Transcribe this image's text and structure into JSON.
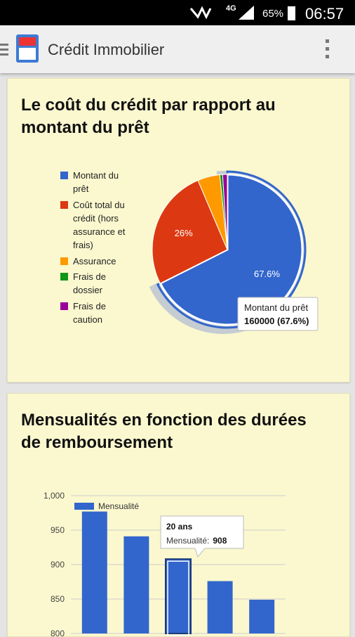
{
  "status_bar": {
    "network": "4G",
    "battery": "65%",
    "time": "06:57"
  },
  "app_bar": {
    "title": "Crédit Immobilier"
  },
  "chart_data": [
    {
      "type": "pie",
      "title": "Le coût du crédit par rapport au montant du prêt",
      "categories": [
        "Montant du prêt",
        "Coût total du crédit (hors assurance et frais)",
        "Assurance",
        "Frais de dossier",
        "Frais de caution"
      ],
      "values": [
        67.6,
        26,
        4.8,
        0.6,
        1.0
      ],
      "value_labels": [
        "67.6%",
        "26%",
        null,
        null,
        null
      ],
      "colors": [
        "#3366cc",
        "#dc3912",
        "#ff9900",
        "#109618",
        "#990099"
      ],
      "legend": "left",
      "tooltip": {
        "text": "160000 (67.6%)"
      }
    },
    {
      "type": "bar",
      "title": "Mensualités en fonction des durées de remboursement",
      "categories": [
        null,
        null,
        "20 ans",
        null,
        null
      ],
      "series": [
        {
          "name": "Mensualité",
          "color": "#3366cc",
          "values": [
            977,
            941,
            908,
            876,
            849
          ]
        }
      ],
      "ylim": [
        800,
        1000
      ],
      "yticks": [
        {
          "value": 1000,
          "label": "1,000"
        },
        950,
        900,
        850,
        800
      ],
      "grid": true,
      "legend": "top",
      "tooltip": {
        "label": "Mensualité:"
      }
    }
  ]
}
